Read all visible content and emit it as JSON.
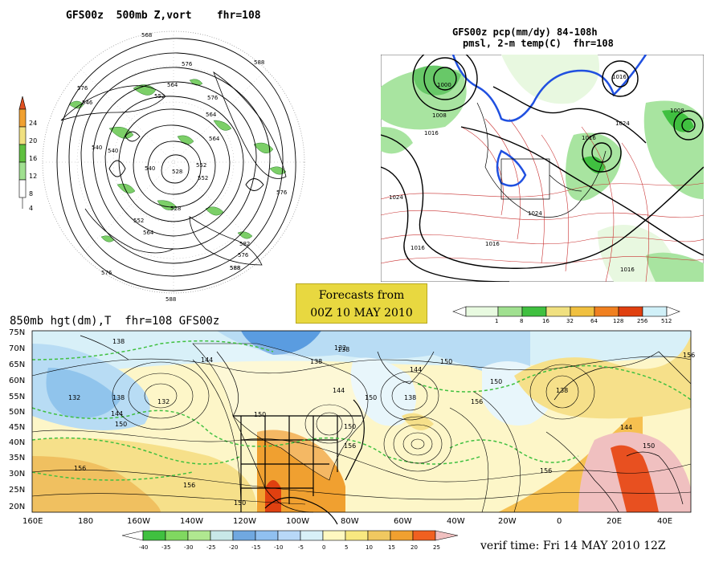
{
  "panels": {
    "polar": {
      "title": "GFS00z  500mb Z,vort    fhr=108",
      "contour_labels": [
        "568",
        "576",
        "588",
        "576",
        "564",
        "552",
        "540",
        "528",
        "552",
        "540",
        "546",
        "582",
        "588",
        "576",
        "576",
        "564",
        "528",
        "540",
        "552",
        "564",
        "576",
        "588",
        "588",
        "576",
        "552",
        "564"
      ],
      "colorbar": {
        "values": [
          "24",
          "20",
          "16",
          "12",
          "8",
          "4"
        ],
        "colors": [
          "#e05020",
          "#f0a030",
          "#f0e080",
          "#60c040",
          "#a0e090",
          "#ffffff"
        ]
      }
    },
    "na": {
      "title_line1": "GFS00z pcp(mm/dy) 84-108h",
      "title_line2": "pmsl, 2-m temp(C)  fhr=108",
      "isobar_labels": [
        "1000",
        "1008",
        "1016",
        "1024",
        "1016",
        "1016",
        "1008",
        "1016",
        "1024",
        "1024",
        "1016",
        "1016"
      ],
      "colorbar": {
        "values": [
          "1",
          "8",
          "16",
          "32",
          "64",
          "128",
          "256",
          "512"
        ],
        "colors": [
          "#e8fae0",
          "#a0e090",
          "#40c040",
          "#f0e080",
          "#f0c040",
          "#f08020",
          "#e04010",
          "#d0f0f8"
        ]
      }
    },
    "forecast": {
      "line1": "Forecasts from",
      "line2": "00Z 10 MAY 2010"
    },
    "h850": {
      "title": "850mb hgt(dm),T  fhr=108 GFS00z",
      "lat_labels": [
        "75N",
        "70N",
        "65N",
        "60N",
        "55N",
        "50N",
        "45N",
        "40N",
        "35N",
        "30N",
        "25N",
        "20N"
      ],
      "lon_labels": [
        "160E",
        "180",
        "160W",
        "140W",
        "120W",
        "100W",
        "80W",
        "60W",
        "40W",
        "20W",
        "0",
        "20E",
        "40E"
      ],
      "contour_labels": [
        "138",
        "144",
        "132",
        "138",
        "132",
        "138",
        "144",
        "150",
        "144",
        "150",
        "138",
        "156",
        "150",
        "156",
        "156",
        "150",
        "132",
        "138",
        "144",
        "156",
        "150",
        "150",
        "156",
        "156",
        "150",
        "138",
        "144",
        "150"
      ],
      "colorbar": {
        "values": [
          "-40",
          "-35",
          "-30",
          "-25",
          "-20",
          "-15",
          "-10",
          "-5",
          "0",
          "5",
          "10",
          "15",
          "20",
          "25"
        ],
        "colors": [
          "#40c040",
          "#80d860",
          "#b0e890",
          "#c8e8e8",
          "#70a8e0",
          "#90c0f0",
          "#b8d8f8",
          "#d8f0f8",
          "#fff8c0",
          "#f8e880",
          "#f0c860",
          "#f0a030",
          "#f06020",
          "#f0c0c0"
        ]
      }
    },
    "verif": "verif time: Fri 14 MAY 2010 12Z"
  }
}
